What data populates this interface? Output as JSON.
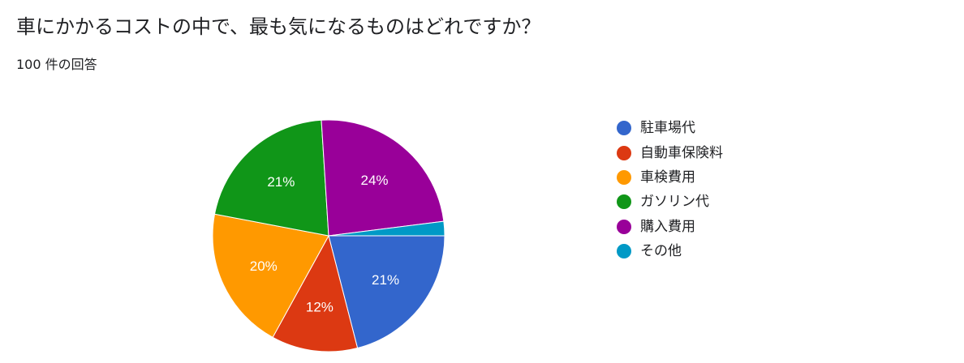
{
  "question": {
    "title": "車にかかるコストの中で、最も気になるものはどれですか？",
    "response_count": "100 件の回答"
  },
  "chart_data": {
    "type": "pie",
    "start_angle_deg": 0,
    "direction": "clockwise",
    "legend_position": "right",
    "slices": [
      {
        "label": "駐車場代",
        "value": 21,
        "display": "21%",
        "color": "#3366cc"
      },
      {
        "label": "自動車保険料",
        "value": 12,
        "display": "12%",
        "color": "#dc3912"
      },
      {
        "label": "車検費用",
        "value": 20,
        "display": "20%",
        "color": "#ff9900"
      },
      {
        "label": "ガソリン代",
        "value": 21,
        "display": "21%",
        "color": "#109618"
      },
      {
        "label": "購入費用",
        "value": 24,
        "display": "24%",
        "color": "#990099"
      },
      {
        "label": "その他",
        "value": 2,
        "display": "",
        "color": "#0099c6"
      }
    ]
  }
}
